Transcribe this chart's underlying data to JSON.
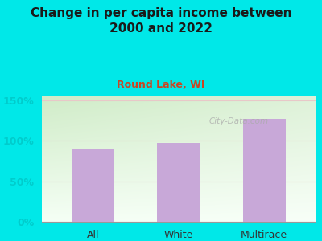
{
  "categories": [
    "All",
    "White",
    "Multirace"
  ],
  "values": [
    90,
    97,
    127
  ],
  "bar_color": "#c8a8d8",
  "title": "Change in per capita income between\n2000 and 2022",
  "subtitle": "Round Lake, WI",
  "title_color": "#1a1a1a",
  "subtitle_color": "#cc4422",
  "background_color": "#00e8e8",
  "plot_bg_top_left": "#d8f0d0",
  "plot_bg_top_right": "#f0f8f0",
  "plot_bg_bottom": "#f8fff8",
  "ylabel_ticks": [
    0,
    50,
    100,
    150
  ],
  "ylabel_tick_labels": [
    "0%",
    "50%",
    "100%",
    "150%"
  ],
  "ylim": [
    0,
    155
  ],
  "watermark": "City-Data.com",
  "tick_color": "#00cccc",
  "grid_color": "#e8c8c8",
  "title_fontsize": 11,
  "subtitle_fontsize": 9,
  "xtick_fontsize": 9,
  "ytick_fontsize": 9
}
